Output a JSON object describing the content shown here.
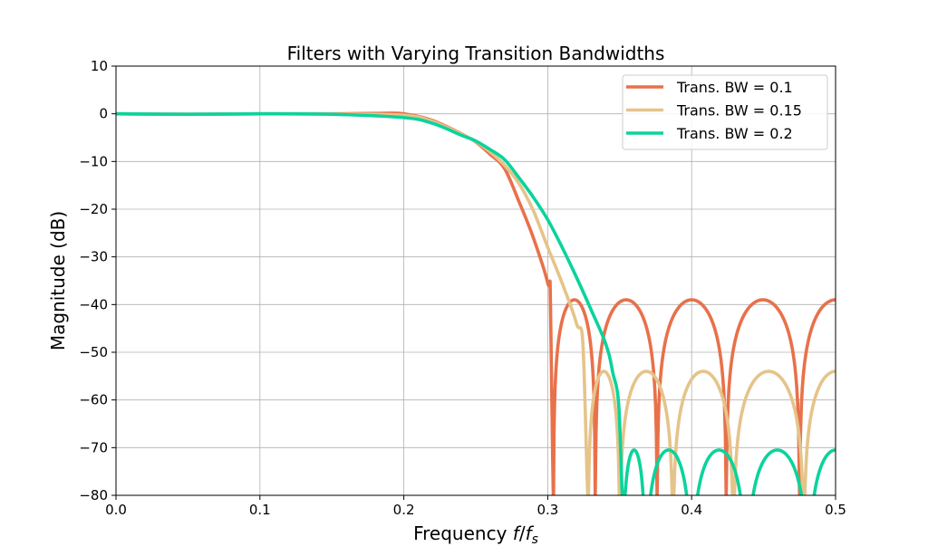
{
  "chart_data": {
    "type": "line",
    "title": "Filters with Varying Transition Bandwidths",
    "xlabel": {
      "prefix": "Frequency ",
      "f": "f",
      "slash": "/",
      "fs": "f",
      "sub": "s"
    },
    "ylabel": "Magnitude (dB)",
    "xlim": [
      0,
      0.5
    ],
    "ylim": [
      -80,
      10
    ],
    "xticks": [
      "0.0",
      "0.1",
      "0.2",
      "0.3",
      "0.4",
      "0.5"
    ],
    "yticks": [
      "10",
      "0",
      "−10",
      "−20",
      "−30",
      "−40",
      "−50",
      "−60",
      "−70",
      "−80"
    ],
    "grid": true,
    "legend_position": "top-right",
    "series": [
      {
        "name": "Trans. BW = 0.1",
        "color": "#E8714A",
        "x": [
          0,
          0.05,
          0.1,
          0.15,
          0.18,
          0.2,
          0.22,
          0.24,
          0.25,
          0.26,
          0.27,
          0.28,
          0.29,
          0.3,
          0.302,
          0.304
        ],
        "y": [
          0,
          -0.1,
          0,
          0,
          0.1,
          0,
          -1.4,
          -4.2,
          -5.9,
          -8.5,
          -11.5,
          -18.4,
          -26,
          -35.5,
          -42,
          -110
        ],
        "stopband": {
          "nulls": [
            0.304,
            0.333,
            0.376,
            0.424,
            0.475
          ],
          "sidelobe_peak_db": -39
        }
      },
      {
        "name": "Trans. BW = 0.15",
        "color": "#E5C48A",
        "x": [
          0,
          0.05,
          0.1,
          0.15,
          0.2,
          0.22,
          0.24,
          0.25,
          0.26,
          0.27,
          0.28,
          0.29,
          0.3,
          0.31,
          0.32,
          0.325,
          0.328
        ],
        "y": [
          0,
          -0.1,
          0,
          -0.05,
          -0.3,
          -1.6,
          -4.3,
          -5.8,
          -8,
          -10.8,
          -14.6,
          -20.3,
          -28,
          -35.5,
          -44,
          -52,
          -110
        ],
        "stopband": {
          "nulls": [
            0.328,
            0.35,
            0.387,
            0.429,
            0.478
          ],
          "sidelobe_peak_db": -54
        }
      },
      {
        "name": "Trans. BW = 0.2",
        "color": "#0BD39C",
        "x": [
          0,
          0.05,
          0.1,
          0.15,
          0.2,
          0.22,
          0.24,
          0.25,
          0.26,
          0.27,
          0.28,
          0.29,
          0.3,
          0.31,
          0.32,
          0.33,
          0.34,
          0.345,
          0.35,
          0.352
        ],
        "y": [
          0,
          -0.1,
          0,
          -0.1,
          -0.8,
          -2,
          -4.5,
          -5.7,
          -7.5,
          -9.6,
          -13.4,
          -17.5,
          -22.2,
          -28,
          -34.3,
          -41,
          -48,
          -54,
          -65,
          -110
        ],
        "stopband": {
          "nulls": [
            0.352,
            0.368,
            0.4,
            0.438,
            0.481
          ],
          "sidelobe_peak_db": -70.5
        }
      }
    ]
  }
}
